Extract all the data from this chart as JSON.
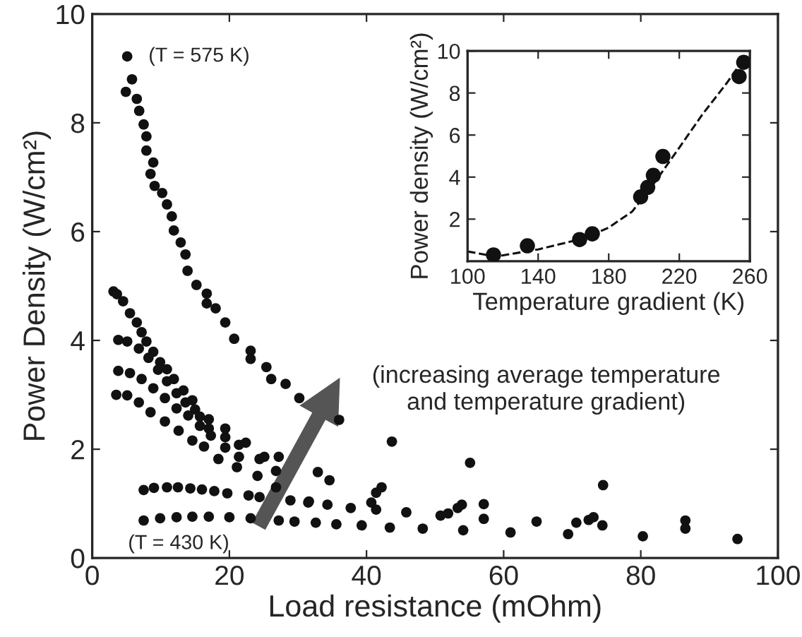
{
  "chart_data": [
    {
      "type": "scatter",
      "xlabel": "Load resistance (mOhm)",
      "ylabel": "Power Density (W/cm²)",
      "xlim": [
        0,
        100
      ],
      "ylim": [
        0,
        10
      ],
      "xticks": [
        0,
        20,
        40,
        60,
        80,
        100
      ],
      "yticks": [
        0,
        2,
        4,
        6,
        8,
        10
      ],
      "grid": false,
      "legend": false,
      "marker": "circle",
      "annotations": [
        "(T = 575 K)",
        "(T = 430 K)",
        "(increasing average temperature\nand temperature gradient)"
      ],
      "series": [
        {
          "color": "#111111",
          "x": [
            5.1,
            5.8,
            4.9,
            6.5,
            6.85,
            7.5,
            7.9,
            7.9,
            8.9,
            8.5,
            9.1,
            10.2,
            10.9,
            11.6,
            11.9,
            12.9,
            13.6,
            13.9,
            15.2,
            16.7,
            16.7,
            18.0,
            19.4,
            20.7,
            23.1,
            23.1,
            25.4,
            26.1,
            28.2,
            30.2,
            36.0,
            43.7,
            55.1,
            74.5
          ],
          "values": [
            9.22,
            8.8,
            8.57,
            8.44,
            8.22,
            7.97,
            7.75,
            7.49,
            7.27,
            7.06,
            6.84,
            6.71,
            6.5,
            6.28,
            6.02,
            5.8,
            5.58,
            5.28,
            5.02,
            4.86,
            4.68,
            4.59,
            4.33,
            4.03,
            3.81,
            3.66,
            3.51,
            3.29,
            3.2,
            2.94,
            2.54,
            2.14,
            1.75,
            1.34
          ]
        },
        {
          "color": "#111111",
          "x": [
            3.1,
            3.6,
            4.5,
            5.5,
            6.5,
            7.2,
            7.9,
            8.9,
            9.9,
            10.9,
            11.9,
            13.3,
            14.6,
            15.7,
            17.0,
            19.4,
            22.4,
            25.1,
            27.2,
            32.9,
            34.6
          ],
          "values": [
            4.9,
            4.85,
            4.72,
            4.5,
            4.33,
            4.15,
            3.98,
            3.79,
            3.6,
            3.47,
            3.29,
            3.08,
            2.9,
            2.6,
            2.38,
            2.38,
            2.12,
            1.86,
            1.86,
            1.58,
            1.43
          ]
        },
        {
          "color": "#111111",
          "x": [
            3.8,
            5.1,
            6.8,
            8.2,
            9.6,
            10.9,
            12.3,
            13.6,
            15.0,
            17.0,
            19.4,
            21.4,
            24.4,
            26.8,
            42.2,
            41.4
          ],
          "values": [
            4.01,
            3.98,
            3.85,
            3.68,
            3.46,
            3.25,
            3.03,
            2.86,
            2.73,
            2.55,
            2.22,
            2.08,
            1.82,
            1.6,
            1.3,
            1.2
          ]
        },
        {
          "color": "#111111",
          "x": [
            3.8,
            5.5,
            7.2,
            8.9,
            10.6,
            12.3,
            14.0,
            15.7,
            17.3,
            19.4,
            21.4,
            40.7
          ],
          "values": [
            3.44,
            3.4,
            3.29,
            3.12,
            2.94,
            2.75,
            2.62,
            2.43,
            2.25,
            2.03,
            1.86,
            1.02
          ]
        },
        {
          "color": "#111111",
          "x": [
            3.5,
            5.1,
            6.8,
            8.5,
            10.6,
            12.6,
            14.6,
            16.3,
            18.4,
            21.1,
            24.1,
            26.8,
            31.6,
            41.4
          ],
          "values": [
            3.0,
            2.99,
            2.86,
            2.68,
            2.51,
            2.34,
            2.16,
            2.05,
            1.82,
            1.67,
            1.51,
            1.3,
            1.04,
            0.89
          ]
        },
        {
          "color": "#111111",
          "x": [
            7.5,
            9.0,
            10.9,
            12.5,
            14.3,
            16.0,
            17.8,
            19.7,
            22.8,
            24.4,
            28.9,
            31.5,
            34.3,
            37.7,
            45.8,
            50.8,
            51.9,
            53.3,
            53.9,
            57.1,
            64.8,
            70.6,
            72.4,
            73.1,
            86.5
          ],
          "values": [
            1.25,
            1.29,
            1.3,
            1.3,
            1.28,
            1.26,
            1.23,
            1.19,
            1.15,
            1.12,
            1.06,
            1.02,
            0.98,
            0.92,
            0.84,
            0.78,
            0.82,
            0.92,
            0.98,
            0.99,
            0.67,
            0.65,
            0.7,
            0.75,
            0.69
          ]
        },
        {
          "color": "#111111",
          "x": [
            7.5,
            9.9,
            12.3,
            14.6,
            17.0,
            20.0,
            23.1,
            27.2,
            29.5,
            32.6,
            35.6,
            39.3,
            43.4,
            48.2,
            54.1,
            57.1,
            61.0,
            69.4,
            74.4,
            80.3,
            86.5,
            94.1
          ],
          "values": [
            0.69,
            0.73,
            0.75,
            0.76,
            0.76,
            0.75,
            0.73,
            0.69,
            0.67,
            0.65,
            0.62,
            0.6,
            0.56,
            0.54,
            0.51,
            0.72,
            0.47,
            0.44,
            0.6,
            0.4,
            0.54,
            0.35
          ]
        }
      ]
    },
    {
      "type": "scatter",
      "xlabel": "Temperature gradient (K)",
      "ylabel": "Power density (W/cm²)",
      "xlim": [
        100,
        260
      ],
      "ylim": [
        0,
        10
      ],
      "xticks": [
        100,
        140,
        180,
        220,
        260
      ],
      "yticks": [
        2,
        4,
        6,
        8,
        10
      ],
      "grid": false,
      "legend": false,
      "series": [
        {
          "marker": "circle",
          "color": "#111111",
          "x": [
            114.7,
            133.9,
            163.5,
            170.7,
            198.1,
            202.1,
            205.3,
            210.7,
            253.9,
            256.5
          ],
          "values": [
            0.3,
            0.73,
            1.03,
            1.3,
            3.06,
            3.51,
            4.08,
            4.98,
            8.78,
            9.46
          ]
        },
        {
          "type": "line",
          "line_style": "dashed",
          "color": "#111111",
          "x": [
            100,
            116,
            140,
            166.7,
            180,
            193.3,
            206.7,
            220,
            233,
            246.7,
            257.3
          ],
          "values": [
            0.46,
            0.22,
            0.56,
            1.1,
            1.6,
            2.36,
            3.82,
            5.4,
            6.97,
            8.45,
            9.7
          ]
        }
      ]
    }
  ]
}
